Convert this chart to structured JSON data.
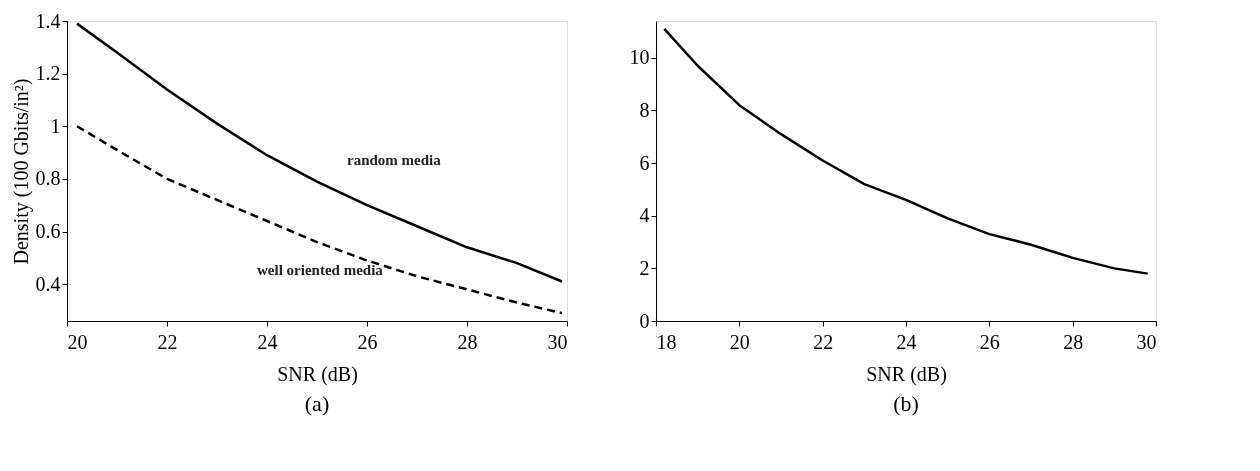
{
  "chart_data": [
    {
      "type": "line",
      "xlabel": "SNR (dB)",
      "ylabel": "Density (100 Gbits/in²)",
      "annotations": [
        "(a)"
      ],
      "xlim": [
        20,
        30
      ],
      "xticks": [
        20,
        22,
        24,
        26,
        28,
        30
      ],
      "ylim": [
        0.26,
        1.4
      ],
      "yticks": [
        0.4,
        0.6,
        {
          "value": 0.8,
          "label": "0.8"
        },
        {
          "value": 1,
          "label": "1"
        },
        1.2,
        1.4
      ],
      "grid": false,
      "marker": "none",
      "series": [
        {
          "name": "random media",
          "color": "#000000",
          "line_style": "solid",
          "x": [
            20.2,
            21,
            22,
            23,
            24,
            25,
            26,
            27,
            28,
            29,
            29.9
          ],
          "values": [
            1.39,
            1.28,
            1.14,
            1.01,
            0.89,
            0.79,
            0.7,
            0.62,
            0.54,
            0.48,
            0.41
          ]
        },
        {
          "name": "well oriented media",
          "color": "#000000",
          "line_style": "dashed",
          "x": [
            20.2,
            21,
            22,
            23,
            24,
            25,
            26,
            27,
            28,
            29,
            29.9
          ],
          "values": [
            1.0,
            0.91,
            0.8,
            0.72,
            0.64,
            0.56,
            0.49,
            0.43,
            0.38,
            0.33,
            0.29
          ]
        }
      ]
    },
    {
      "type": "line",
      "xlabel": "SNR (dB)",
      "annotations": [
        "(b)"
      ],
      "xlim": [
        18,
        30
      ],
      "xticks": [
        18,
        20,
        22,
        24,
        26,
        28,
        30
      ],
      "ylim": [
        0,
        11.4
      ],
      "yticks": [
        0,
        2,
        4,
        6,
        8,
        10
      ],
      "grid": false,
      "marker": "none",
      "series": [
        {
          "color": "#000000",
          "line_style": "solid",
          "x": [
            18.2,
            19,
            20,
            21,
            22,
            23,
            24,
            25,
            26,
            27,
            28,
            29,
            29.8
          ],
          "values": [
            11.1,
            9.7,
            8.2,
            7.1,
            6.1,
            5.2,
            4.6,
            3.9,
            3.3,
            2.9,
            2.4,
            2.0,
            1.8
          ]
        }
      ]
    }
  ]
}
